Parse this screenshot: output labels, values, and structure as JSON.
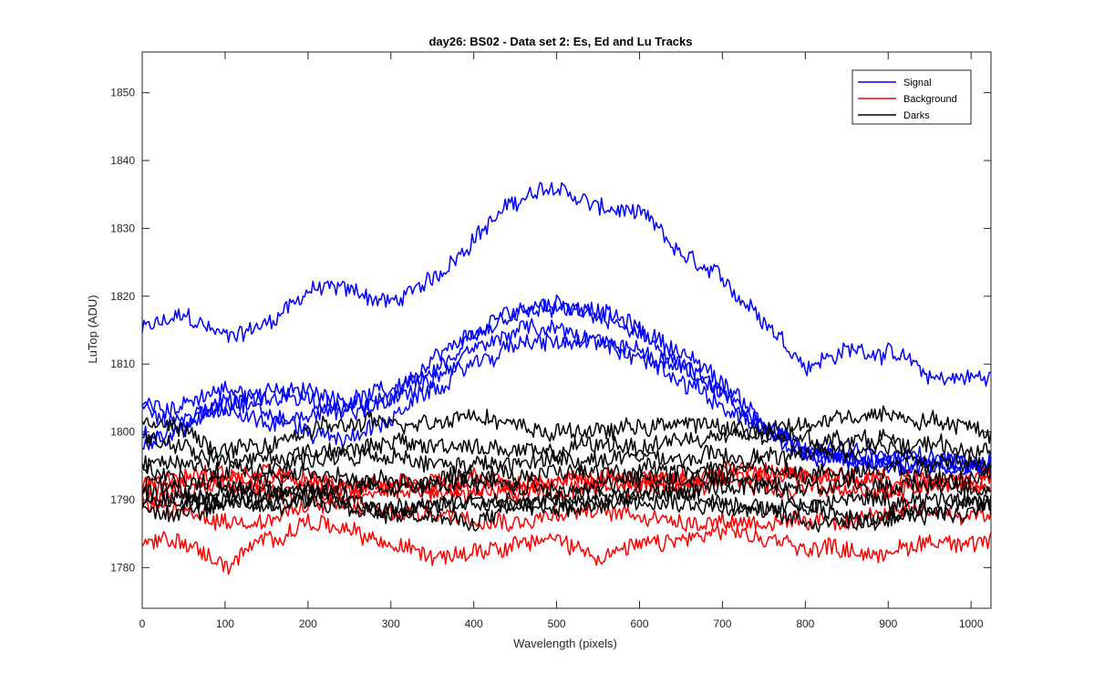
{
  "chart_data": {
    "type": "line",
    "title": "day26: BS02 - Data set 2: Es, Ed and Lu Tracks",
    "xlabel": "Wavelength (pixels)",
    "ylabel": "LuTop (ADU)",
    "xlim": [
      0,
      1024
    ],
    "ylim": [
      1774,
      1856
    ],
    "xticks": [
      0,
      100,
      200,
      300,
      400,
      500,
      600,
      700,
      800,
      900,
      1000
    ],
    "yticks": [
      1780,
      1790,
      1800,
      1810,
      1820,
      1830,
      1840,
      1850
    ],
    "grid": false,
    "legend_position": "top-right",
    "colors": {
      "Signal": "#0000ff",
      "Background": "#ff0000",
      "Darks": "#000000"
    },
    "legend": [
      {
        "name": "Signal",
        "color": "#0000ff"
      },
      {
        "name": "Background",
        "color": "#ff0000"
      },
      {
        "name": "Darks",
        "color": "#000000"
      }
    ],
    "x": [
      0,
      50,
      100,
      150,
      200,
      250,
      300,
      350,
      400,
      450,
      500,
      550,
      600,
      650,
      700,
      750,
      800,
      850,
      900,
      950,
      1024
    ],
    "series": [
      {
        "name": "Signal",
        "color": "#0000ff",
        "values": [
          1815,
          1817,
          1814,
          1816,
          1821,
          1821,
          1819,
          1822,
          1829,
          1834,
          1836,
          1833,
          1832,
          1826,
          1822,
          1817,
          1810,
          1812,
          1812,
          1808,
          1808
        ]
      },
      {
        "name": "Signal",
        "color": "#0000ff",
        "values": [
          1804,
          1804,
          1806,
          1805,
          1806,
          1805,
          1806,
          1810,
          1814,
          1818,
          1819,
          1818,
          1815,
          1812,
          1807,
          1802,
          1797,
          1796,
          1795,
          1795,
          1795
        ]
      },
      {
        "name": "Signal",
        "color": "#0000ff",
        "values": [
          1803,
          1802,
          1804,
          1806,
          1805,
          1802,
          1805,
          1809,
          1813,
          1817,
          1818,
          1817,
          1814,
          1810,
          1805,
          1800,
          1797,
          1796,
          1796,
          1796,
          1796
        ]
      },
      {
        "name": "Signal",
        "color": "#0000ff",
        "values": [
          1798,
          1800,
          1806,
          1803,
          1800,
          1799,
          1802,
          1806,
          1810,
          1813,
          1813,
          1813,
          1812,
          1810,
          1806,
          1801,
          1798,
          1797,
          1796,
          1796,
          1795
        ]
      },
      {
        "name": "Signal",
        "color": "#0000ff",
        "values": [
          1799,
          1801,
          1803,
          1801,
          1803,
          1804,
          1805,
          1808,
          1812,
          1815,
          1815,
          1813,
          1811,
          1808,
          1804,
          1800,
          1797,
          1796,
          1795,
          1795,
          1795
        ]
      },
      {
        "name": "Background",
        "color": "#ff0000",
        "values": [
          1784,
          1784,
          1780,
          1784,
          1787,
          1785,
          1783,
          1782,
          1783,
          1784,
          1784,
          1782,
          1783,
          1784,
          1785,
          1784,
          1783,
          1783,
          1782,
          1784,
          1784
        ]
      },
      {
        "name": "Background",
        "color": "#ff0000",
        "values": [
          1789,
          1788,
          1787,
          1787,
          1789,
          1789,
          1788,
          1788,
          1788,
          1787,
          1788,
          1788,
          1788,
          1787,
          1787,
          1787,
          1786,
          1787,
          1788,
          1788,
          1788
        ]
      },
      {
        "name": "Background",
        "color": "#ff0000",
        "values": [
          1790,
          1791,
          1792,
          1791,
          1791,
          1790,
          1791,
          1791,
          1791,
          1791,
          1791,
          1791,
          1792,
          1792,
          1793,
          1792,
          1792,
          1791,
          1791,
          1792,
          1792
        ]
      },
      {
        "name": "Background",
        "color": "#ff0000",
        "values": [
          1792,
          1793,
          1794,
          1793,
          1793,
          1792,
          1793,
          1793,
          1793,
          1792,
          1793,
          1793,
          1793,
          1793,
          1794,
          1794,
          1794,
          1793,
          1792,
          1793,
          1793
        ]
      },
      {
        "name": "Background",
        "color": "#ff0000",
        "values": [
          1791,
          1792,
          1793,
          1794,
          1793,
          1792,
          1792,
          1792,
          1792,
          1792,
          1793,
          1793,
          1793,
          1793,
          1794,
          1794,
          1794,
          1793,
          1793,
          1793,
          1794
        ]
      },
      {
        "name": "Darks",
        "color": "#000000",
        "values": [
          1802,
          1800,
          1797,
          1798,
          1800,
          1801,
          1801,
          1802,
          1803,
          1801,
          1800,
          1800,
          1801,
          1801,
          1801,
          1800,
          1801,
          1802,
          1803,
          1802,
          1800
        ]
      },
      {
        "name": "Darks",
        "color": "#000000",
        "values": [
          1799,
          1798,
          1796,
          1796,
          1797,
          1798,
          1798,
          1798,
          1798,
          1797,
          1797,
          1798,
          1798,
          1799,
          1799,
          1799,
          1799,
          1799,
          1799,
          1798,
          1797
        ]
      },
      {
        "name": "Darks",
        "color": "#000000",
        "values": [
          1796,
          1795,
          1794,
          1795,
          1796,
          1796,
          1796,
          1795,
          1795,
          1795,
          1796,
          1796,
          1796,
          1796,
          1796,
          1796,
          1797,
          1797,
          1797,
          1796,
          1795
        ]
      },
      {
        "name": "Darks",
        "color": "#000000",
        "values": [
          1794,
          1793,
          1792,
          1793,
          1794,
          1793,
          1793,
          1793,
          1794,
          1794,
          1794,
          1794,
          1794,
          1794,
          1795,
          1795,
          1794,
          1794,
          1795,
          1794,
          1794
        ]
      },
      {
        "name": "Darks",
        "color": "#000000",
        "values": [
          1792,
          1791,
          1790,
          1791,
          1792,
          1792,
          1792,
          1792,
          1792,
          1792,
          1792,
          1792,
          1793,
          1793,
          1793,
          1793,
          1792,
          1792,
          1792,
          1792,
          1792
        ]
      },
      {
        "name": "Darks",
        "color": "#000000",
        "values": [
          1790,
          1790,
          1789,
          1790,
          1790,
          1789,
          1789,
          1789,
          1789,
          1790,
          1790,
          1790,
          1791,
          1791,
          1790,
          1789,
          1789,
          1790,
          1790,
          1790,
          1790
        ]
      },
      {
        "name": "Darks",
        "color": "#000000",
        "values": [
          1791,
          1790,
          1791,
          1792,
          1791,
          1790,
          1788,
          1788,
          1786,
          1789,
          1790,
          1791,
          1791,
          1790,
          1789,
          1788,
          1787,
          1787,
          1788,
          1789,
          1789
        ]
      },
      {
        "name": "Darks",
        "color": "#000000",
        "values": [
          1789,
          1788,
          1789,
          1789,
          1790,
          1789,
          1788,
          1789,
          1790,
          1789,
          1788,
          1789,
          1790,
          1791,
          1792,
          1791,
          1789,
          1788,
          1787,
          1788,
          1789
        ]
      }
    ]
  }
}
